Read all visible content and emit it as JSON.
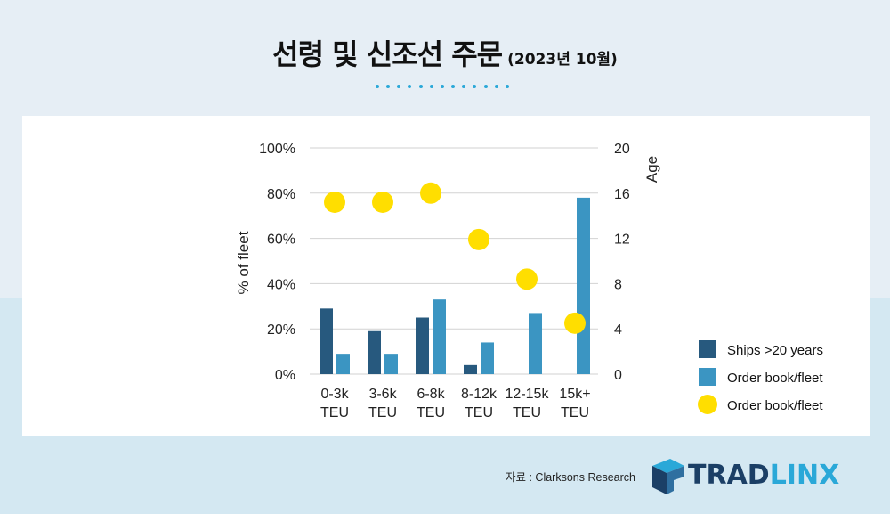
{
  "header": {
    "title": "선령 및 신조선 주문",
    "subtitle": "(2023년 10월)"
  },
  "chart_data": {
    "type": "bar",
    "categories": [
      [
        "0-3k",
        "TEU"
      ],
      [
        "3-6k",
        "TEU"
      ],
      [
        "6-8k",
        "TEU"
      ],
      [
        "8-12k",
        "TEU"
      ],
      [
        "12-15k",
        "TEU"
      ],
      [
        "15k+",
        "TEU"
      ]
    ],
    "series": [
      {
        "name": "Ships >20 years",
        "kind": "bar",
        "axis": "left",
        "values": [
          29,
          19,
          25,
          4,
          null,
          null
        ],
        "color": "#27597e"
      },
      {
        "name": "Order book/fleet",
        "kind": "bar",
        "axis": "left",
        "values": [
          9,
          9,
          33,
          14,
          27,
          78
        ],
        "color": "#3b95c2"
      },
      {
        "name": "Order book/fleet",
        "kind": "scatter",
        "axis": "right",
        "values": [
          15.2,
          15.2,
          16.0,
          11.9,
          8.4,
          4.5
        ],
        "color": "#ffde00"
      }
    ],
    "ylabel": "% of fleet",
    "y2label": "Age",
    "ylim": [
      0,
      100
    ],
    "y2lim": [
      0,
      20
    ],
    "yticks": [
      "0%",
      "20%",
      "40%",
      "60%",
      "80%",
      "100%"
    ],
    "y2ticks": [
      "0",
      "4",
      "8",
      "12",
      "16",
      "20"
    ],
    "grid": true,
    "legend_position": "bottom-right"
  },
  "footer": {
    "source": "자료 : Clarksons Research",
    "logo_trad": "TRAD",
    "logo_linx": "LINX"
  },
  "colors": {
    "logo_dark": "#1b3f66",
    "logo_light": "#2aa8d8"
  }
}
